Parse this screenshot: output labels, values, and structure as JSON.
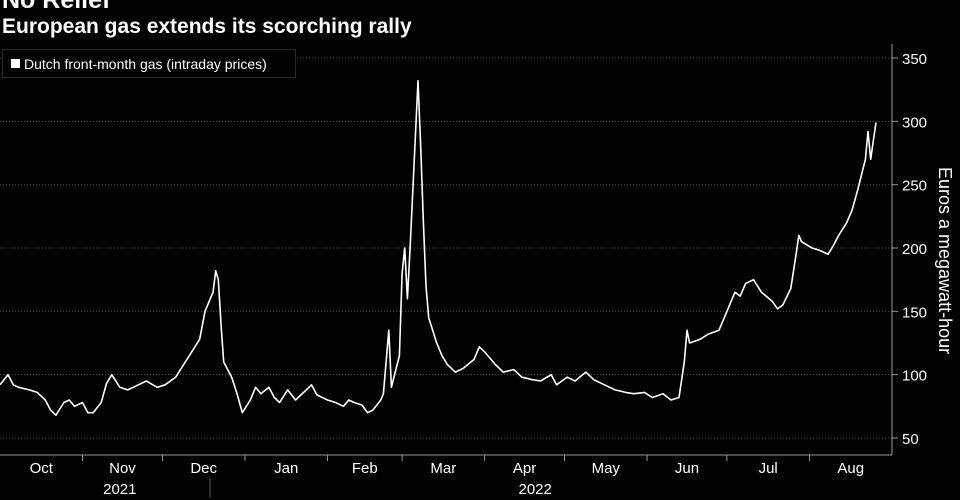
{
  "title": "No Relief",
  "subtitle": "European gas extends its scorching rally",
  "legend": {
    "label": "Dutch front-month gas (intraday prices)"
  },
  "chart_data": {
    "type": "line",
    "ylabel": "Euros a megawatt-hour",
    "ylim": [
      35,
      355
    ],
    "yticks": [
      50,
      100,
      150,
      200,
      250,
      300,
      350
    ],
    "months": [
      "Oct",
      "Nov",
      "Dec",
      "Jan",
      "Feb",
      "Mar",
      "Apr",
      "May",
      "Jun",
      "Jul",
      "Aug"
    ],
    "years": [
      "2021",
      "2022"
    ],
    "grid": true,
    "series": [
      {
        "name": "Dutch front-month gas (intraday prices)",
        "color": "#ffffff",
        "points": [
          [
            "2021-10-01",
            92
          ],
          [
            "2021-10-04",
            100
          ],
          [
            "2021-10-06",
            92
          ],
          [
            "2021-10-08",
            90
          ],
          [
            "2021-10-12",
            88
          ],
          [
            "2021-10-15",
            86
          ],
          [
            "2021-10-18",
            80
          ],
          [
            "2021-10-20",
            72
          ],
          [
            "2021-10-22",
            68
          ],
          [
            "2021-10-25",
            78
          ],
          [
            "2021-10-27",
            80
          ],
          [
            "2021-10-29",
            75
          ],
          [
            "2021-11-01",
            78
          ],
          [
            "2021-11-03",
            70
          ],
          [
            "2021-11-05",
            70
          ],
          [
            "2021-11-08",
            78
          ],
          [
            "2021-11-10",
            93
          ],
          [
            "2021-11-12",
            100
          ],
          [
            "2021-11-15",
            90
          ],
          [
            "2021-11-18",
            88
          ],
          [
            "2021-11-22",
            92
          ],
          [
            "2021-11-25",
            95
          ],
          [
            "2021-11-29",
            90
          ],
          [
            "2021-12-02",
            92
          ],
          [
            "2021-12-06",
            98
          ],
          [
            "2021-12-09",
            108
          ],
          [
            "2021-12-12",
            118
          ],
          [
            "2021-12-15",
            128
          ],
          [
            "2021-12-17",
            150
          ],
          [
            "2021-12-20",
            165
          ],
          [
            "2021-12-21",
            182
          ],
          [
            "2021-12-22",
            175
          ],
          [
            "2021-12-23",
            140
          ],
          [
            "2021-12-24",
            110
          ],
          [
            "2021-12-27",
            98
          ],
          [
            "2021-12-29",
            85
          ],
          [
            "2021-12-31",
            70
          ],
          [
            "2022-01-03",
            80
          ],
          [
            "2022-01-05",
            90
          ],
          [
            "2022-01-07",
            85
          ],
          [
            "2022-01-10",
            90
          ],
          [
            "2022-01-12",
            82
          ],
          [
            "2022-01-14",
            78
          ],
          [
            "2022-01-17",
            88
          ],
          [
            "2022-01-20",
            80
          ],
          [
            "2022-01-24",
            88
          ],
          [
            "2022-01-26",
            92
          ],
          [
            "2022-01-28",
            84
          ],
          [
            "2022-02-01",
            80
          ],
          [
            "2022-02-04",
            78
          ],
          [
            "2022-02-07",
            75
          ],
          [
            "2022-02-09",
            80
          ],
          [
            "2022-02-11",
            78
          ],
          [
            "2022-02-14",
            76
          ],
          [
            "2022-02-16",
            70
          ],
          [
            "2022-02-18",
            72
          ],
          [
            "2022-02-21",
            80
          ],
          [
            "2022-02-22",
            85
          ],
          [
            "2022-02-23",
            110
          ],
          [
            "2022-02-24",
            135
          ],
          [
            "2022-02-25",
            90
          ],
          [
            "2022-02-28",
            115
          ],
          [
            "2022-03-01",
            180
          ],
          [
            "2022-03-02",
            200
          ],
          [
            "2022-03-03",
            160
          ],
          [
            "2022-03-04",
            200
          ],
          [
            "2022-03-07",
            332
          ],
          [
            "2022-03-08",
            280
          ],
          [
            "2022-03-09",
            220
          ],
          [
            "2022-03-10",
            170
          ],
          [
            "2022-03-11",
            145
          ],
          [
            "2022-03-14",
            125
          ],
          [
            "2022-03-16",
            115
          ],
          [
            "2022-03-18",
            108
          ],
          [
            "2022-03-21",
            102
          ],
          [
            "2022-03-24",
            105
          ],
          [
            "2022-03-28",
            112
          ],
          [
            "2022-03-30",
            122
          ],
          [
            "2022-04-01",
            118
          ],
          [
            "2022-04-05",
            108
          ],
          [
            "2022-04-08",
            102
          ],
          [
            "2022-04-12",
            104
          ],
          [
            "2022-04-15",
            98
          ],
          [
            "2022-04-19",
            96
          ],
          [
            "2022-04-22",
            95
          ],
          [
            "2022-04-26",
            100
          ],
          [
            "2022-04-28",
            92
          ],
          [
            "2022-05-02",
            98
          ],
          [
            "2022-05-05",
            95
          ],
          [
            "2022-05-09",
            102
          ],
          [
            "2022-05-12",
            96
          ],
          [
            "2022-05-16",
            92
          ],
          [
            "2022-05-20",
            88
          ],
          [
            "2022-05-24",
            86
          ],
          [
            "2022-05-27",
            85
          ],
          [
            "2022-05-31",
            86
          ],
          [
            "2022-06-03",
            82
          ],
          [
            "2022-06-07",
            85
          ],
          [
            "2022-06-10",
            80
          ],
          [
            "2022-06-13",
            82
          ],
          [
            "2022-06-15",
            110
          ],
          [
            "2022-06-16",
            135
          ],
          [
            "2022-06-17",
            125
          ],
          [
            "2022-06-21",
            128
          ],
          [
            "2022-06-24",
            132
          ],
          [
            "2022-06-28",
            135
          ],
          [
            "2022-06-30",
            145
          ],
          [
            "2022-07-04",
            165
          ],
          [
            "2022-07-06",
            162
          ],
          [
            "2022-07-08",
            172
          ],
          [
            "2022-07-11",
            175
          ],
          [
            "2022-07-14",
            165
          ],
          [
            "2022-07-18",
            158
          ],
          [
            "2022-07-20",
            152
          ],
          [
            "2022-07-22",
            155
          ],
          [
            "2022-07-25",
            168
          ],
          [
            "2022-07-27",
            195
          ],
          [
            "2022-07-28",
            210
          ],
          [
            "2022-07-29",
            205
          ],
          [
            "2022-08-02",
            200
          ],
          [
            "2022-08-05",
            198
          ],
          [
            "2022-08-08",
            195
          ],
          [
            "2022-08-10",
            202
          ],
          [
            "2022-08-12",
            210
          ],
          [
            "2022-08-15",
            220
          ],
          [
            "2022-08-17",
            230
          ],
          [
            "2022-08-19",
            245
          ],
          [
            "2022-08-22",
            270
          ],
          [
            "2022-08-23",
            292
          ],
          [
            "2022-08-24",
            270
          ],
          [
            "2022-08-25",
            285
          ],
          [
            "2022-08-26",
            299
          ]
        ]
      }
    ]
  }
}
